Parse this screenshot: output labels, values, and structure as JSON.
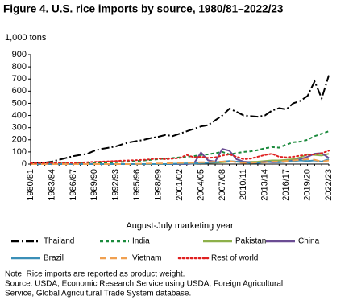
{
  "chart_data": {
    "type": "line",
    "title": "Figure 4. U.S. rice imports by source, 1980/81–2022/23",
    "y_label": "1,000 tons",
    "x_label": "August-July marketing year",
    "categories": [
      "1980/81",
      null,
      null,
      "1983/84",
      null,
      null,
      "1986/87",
      null,
      null,
      "1989/90",
      null,
      null,
      "1992/93",
      null,
      null,
      "1995/96",
      null,
      null,
      "1998/99",
      null,
      null,
      "2001/02",
      null,
      null,
      "2004/05",
      null,
      null,
      "2007/08",
      null,
      null,
      "2010/11",
      null,
      null,
      "2013/14",
      null,
      null,
      "2016/17",
      null,
      null,
      "2019/20",
      null,
      null,
      "2022/23"
    ],
    "ylim": [
      0,
      900
    ],
    "yticks": [
      0,
      100,
      200,
      300,
      400,
      500,
      600,
      700,
      800,
      900
    ],
    "grid": false,
    "legend": "bottom",
    "series": [
      {
        "name": "Thailand",
        "color": "#000000",
        "dash": "dashdot",
        "values": [
          5,
          8,
          12,
          20,
          35,
          50,
          65,
          75,
          85,
          110,
          125,
          135,
          145,
          165,
          180,
          190,
          200,
          215,
          225,
          240,
          230,
          250,
          270,
          290,
          310,
          320,
          360,
          400,
          455,
          430,
          400,
          395,
          390,
          400,
          440,
          460,
          450,
          500,
          520,
          560,
          680,
          540,
          730
        ]
      },
      {
        "name": "India",
        "color": "#1a8a3c",
        "dash": "dashed",
        "values": [
          2,
          2,
          3,
          3,
          4,
          5,
          5,
          6,
          7,
          8,
          10,
          12,
          15,
          18,
          20,
          25,
          30,
          35,
          40,
          45,
          50,
          55,
          60,
          65,
          75,
          80,
          90,
          100,
          80,
          90,
          100,
          105,
          115,
          130,
          140,
          135,
          160,
          180,
          185,
          200,
          230,
          250,
          270
        ]
      },
      {
        "name": "Pakistan",
        "color": "#8db04a",
        "dash": "solid",
        "values": [
          0,
          0,
          0,
          0,
          0,
          0,
          0,
          0,
          0,
          0,
          0,
          0,
          0,
          0,
          0,
          0,
          0,
          0,
          0,
          0,
          2,
          3,
          5,
          5,
          8,
          10,
          12,
          15,
          20,
          20,
          15,
          18,
          20,
          25,
          30,
          30,
          35,
          40,
          55,
          80,
          75,
          70,
          85
        ]
      },
      {
        "name": "China",
        "color": "#6a4c93",
        "dash": "solid",
        "values": [
          0,
          0,
          0,
          0,
          0,
          0,
          0,
          0,
          0,
          0,
          0,
          0,
          0,
          0,
          0,
          0,
          0,
          0,
          0,
          0,
          0,
          0,
          0,
          5,
          95,
          30,
          20,
          125,
          110,
          40,
          20,
          15,
          10,
          20,
          15,
          15,
          20,
          30,
          40,
          60,
          85,
          90,
          50
        ]
      },
      {
        "name": "Brazil",
        "color": "#3a8fb7",
        "dash": "solid",
        "values": [
          0,
          0,
          0,
          0,
          0,
          0,
          0,
          0,
          0,
          0,
          0,
          0,
          0,
          0,
          0,
          0,
          0,
          0,
          0,
          0,
          2,
          3,
          5,
          5,
          8,
          10,
          15,
          20,
          25,
          20,
          15,
          10,
          10,
          15,
          20,
          15,
          20,
          25,
          30,
          25,
          30,
          20,
          40
        ]
      },
      {
        "name": "Vietnam",
        "color": "#f0a050",
        "dash": "longdash",
        "values": [
          0,
          0,
          0,
          0,
          0,
          0,
          0,
          0,
          0,
          0,
          0,
          0,
          0,
          0,
          0,
          2,
          3,
          5,
          5,
          5,
          8,
          10,
          10,
          12,
          15,
          15,
          20,
          20,
          25,
          15,
          10,
          10,
          15,
          15,
          20,
          20,
          25,
          30,
          35,
          40,
          35,
          20,
          30
        ]
      },
      {
        "name": "Rest of world",
        "color": "#e02020",
        "dash": "dotted",
        "values": [
          8,
          8,
          10,
          10,
          12,
          12,
          10,
          12,
          15,
          18,
          20,
          22,
          25,
          28,
          30,
          32,
          35,
          40,
          45,
          40,
          45,
          50,
          75,
          55,
          60,
          50,
          55,
          70,
          80,
          60,
          40,
          45,
          60,
          75,
          85,
          60,
          55,
          60,
          70,
          75,
          80,
          90,
          110
        ]
      }
    ]
  },
  "notes": {
    "note": "Note: Rice imports are reported as product weight.",
    "source": [
      "Source: USDA, Economic Research Service using USDA, Foreign Agricultural",
      "Service, Global Agricultural Trade System database."
    ]
  }
}
